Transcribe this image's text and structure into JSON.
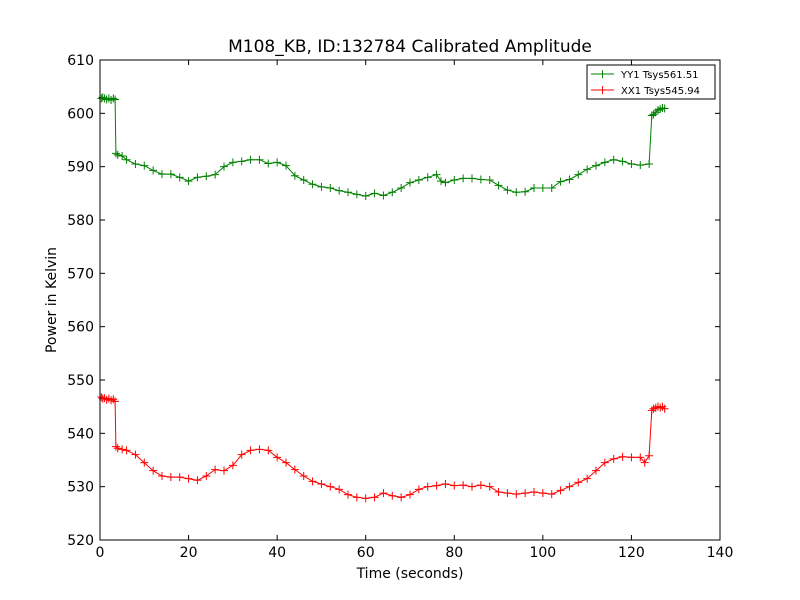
{
  "chart_data": {
    "type": "line",
    "title": "M108_KB, ID:132784 Calibrated Amplitude",
    "xlabel": "Time (seconds)",
    "ylabel": "Power in Kelvin",
    "xlim": [
      0,
      140
    ],
    "ylim": [
      520,
      610
    ],
    "xticks": [
      0,
      20,
      40,
      60,
      80,
      100,
      120,
      140
    ],
    "yticks": [
      520,
      530,
      540,
      550,
      560,
      570,
      580,
      590,
      600,
      610
    ],
    "grid": false,
    "legend_position": "top-right",
    "series": [
      {
        "name": "YY1 Tsys561.51",
        "color": "#008000",
        "marker": "+",
        "x": [
          0.3,
          0.6,
          1,
          1.5,
          2,
          2.5,
          3,
          3.4,
          3.6,
          4,
          5,
          6,
          8,
          10,
          12,
          14,
          16,
          18,
          20,
          22,
          24,
          26,
          28,
          30,
          32,
          34,
          36,
          38,
          40,
          42,
          44,
          46,
          48,
          50,
          52,
          54,
          56,
          58,
          60,
          62,
          64,
          66,
          68,
          70,
          72,
          74,
          76,
          77,
          78,
          80,
          82,
          84,
          86,
          88,
          90,
          92,
          94,
          96,
          98,
          100,
          102,
          104,
          106,
          108,
          110,
          112,
          114,
          116,
          118,
          120,
          122,
          124,
          124.6,
          125,
          125.5,
          126,
          126.5,
          127,
          127.5
        ],
        "y": [
          602.8,
          603.0,
          602.8,
          602.6,
          602.8,
          602.5,
          602.8,
          602.6,
          592.5,
          592.2,
          592.0,
          591.3,
          590.5,
          590.2,
          589.3,
          588.6,
          588.6,
          588.0,
          587.3,
          588.0,
          588.2,
          588.5,
          590.0,
          590.8,
          591.0,
          591.3,
          591.3,
          590.6,
          590.8,
          590.2,
          588.3,
          587.5,
          586.7,
          586.2,
          586.0,
          585.5,
          585.2,
          584.8,
          584.5,
          585.0,
          584.6,
          585.2,
          586.0,
          587.0,
          587.5,
          588.0,
          588.5,
          587.3,
          587.0,
          587.5,
          587.8,
          587.8,
          587.6,
          587.5,
          586.5,
          585.6,
          585.2,
          585.3,
          586.0,
          586.0,
          586.0,
          587.2,
          587.6,
          588.5,
          589.5,
          590.2,
          590.8,
          591.3,
          591.0,
          590.5,
          590.3,
          590.5,
          599.6,
          599.8,
          600.2,
          600.6,
          600.8,
          601.0,
          600.9
        ]
      },
      {
        "name": "XX1 Tsys545.94",
        "color": "#ff0000",
        "marker": "+",
        "x": [
          0.3,
          0.6,
          1,
          1.5,
          2,
          2.5,
          3,
          3.4,
          3.6,
          4,
          5,
          6,
          8,
          10,
          12,
          14,
          16,
          18,
          20,
          22,
          24,
          26,
          28,
          30,
          32,
          34,
          36,
          38,
          40,
          42,
          44,
          46,
          48,
          50,
          52,
          54,
          56,
          58,
          60,
          62,
          64,
          66,
          68,
          70,
          72,
          74,
          76,
          78,
          80,
          82,
          84,
          86,
          88,
          90,
          92,
          94,
          96,
          98,
          100,
          102,
          104,
          106,
          108,
          110,
          112,
          114,
          116,
          118,
          120,
          122,
          123,
          124,
          124.6,
          125,
          125.5,
          126,
          126.5,
          127,
          127.5
        ],
        "y": [
          546.8,
          546.5,
          546.6,
          546.3,
          546.5,
          546.2,
          546.4,
          546.0,
          537.5,
          537.2,
          537.0,
          536.8,
          536.0,
          534.5,
          533.0,
          532.0,
          531.8,
          531.8,
          531.5,
          531.2,
          532.0,
          533.2,
          533.0,
          534.0,
          536.0,
          536.8,
          537.0,
          536.8,
          535.5,
          534.5,
          533.2,
          532.0,
          531.0,
          530.5,
          530.0,
          529.5,
          528.5,
          528.0,
          527.8,
          528.0,
          528.8,
          528.3,
          528.0,
          528.5,
          529.5,
          530.0,
          530.2,
          530.5,
          530.2,
          530.3,
          530.0,
          530.3,
          530.0,
          529.0,
          528.8,
          528.6,
          528.8,
          529.0,
          528.8,
          528.6,
          529.3,
          530.0,
          530.8,
          531.5,
          533.0,
          534.5,
          535.2,
          535.6,
          535.5,
          535.5,
          534.5,
          535.8,
          544.3,
          544.6,
          544.8,
          545.0,
          544.8,
          545.0,
          544.6
        ]
      }
    ]
  }
}
